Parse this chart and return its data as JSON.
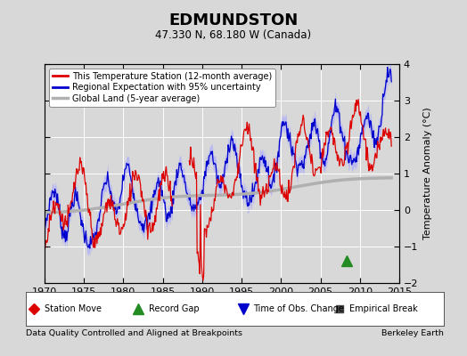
{
  "title": "EDMUNDSTON",
  "subtitle": "47.330 N, 68.180 W (Canada)",
  "ylabel": "Temperature Anomaly (°C)",
  "xlabel_bottom_left": "Data Quality Controlled and Aligned at Breakpoints",
  "xlabel_bottom_right": "Berkeley Earth",
  "xlim": [
    1970,
    2015
  ],
  "ylim": [
    -2,
    4
  ],
  "yticks": [
    -2,
    -1,
    0,
    1,
    2,
    3,
    4
  ],
  "xticks": [
    1970,
    1975,
    1980,
    1985,
    1990,
    1995,
    2000,
    2005,
    2010,
    2015
  ],
  "bg_color": "#d8d8d8",
  "plot_bg_color": "#d8d8d8",
  "red_color": "#dd0000",
  "blue_color": "#0000cc",
  "blue_band_color": "#aaaaff",
  "gray_color": "#b0b0b0",
  "grid_color": "#ffffff",
  "legend_items": [
    {
      "label": "This Temperature Station (12-month average)",
      "color": "#dd0000"
    },
    {
      "label": "Regional Expectation with 95% uncertainty",
      "color": "#0000cc"
    },
    {
      "label": "Global Land (5-year average)",
      "color": "#b0b0b0"
    }
  ],
  "bottom_legend": [
    {
      "label": "Station Move",
      "marker": "D",
      "color": "#dd0000"
    },
    {
      "label": "Record Gap",
      "marker": "^",
      "color": "#228B22"
    },
    {
      "label": "Time of Obs. Change",
      "marker": "v",
      "color": "#0000cc"
    },
    {
      "label": "Empirical Break",
      "marker": "s",
      "color": "#444444"
    }
  ],
  "empirical_break_year": 2008.3,
  "empirical_break_y": -1.38
}
